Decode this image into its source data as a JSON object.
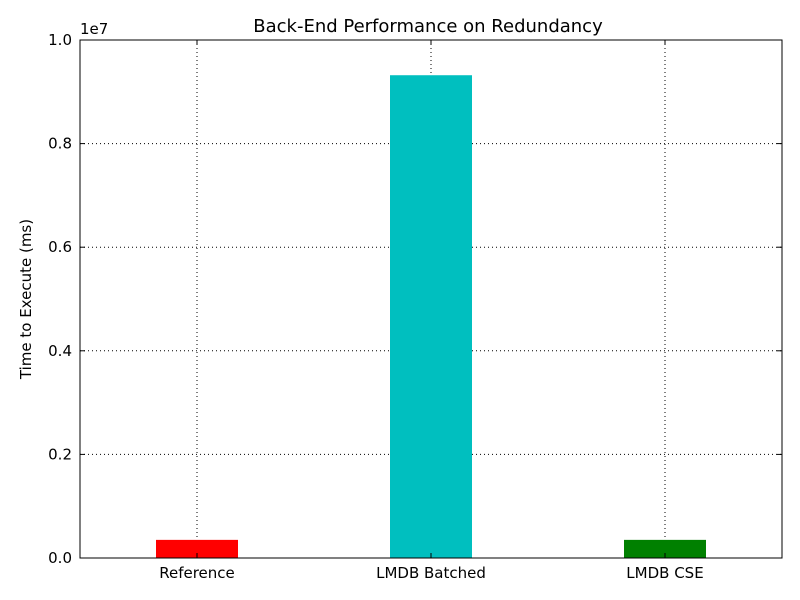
{
  "chart_data": {
    "type": "bar",
    "title": "Back-End Performance on  Redundancy",
    "xlabel": "",
    "ylabel": "Time to Execute (ms)",
    "y_scale_label": "1e7",
    "categories": [
      "Reference",
      "LMDB Batched",
      "LMDB CSE"
    ],
    "values": [
      350000,
      9320000,
      350000
    ],
    "bar_colors": [
      "#ff0000",
      "#00bfbf",
      "#008000"
    ],
    "ylim": [
      0,
      10000000
    ],
    "yticks": [
      0,
      2000000,
      4000000,
      6000000,
      8000000,
      10000000
    ],
    "ytick_labels": [
      "0.0",
      "0.2",
      "0.4",
      "0.6",
      "0.8",
      "1.0"
    ],
    "grid": true,
    "legend": "none"
  }
}
